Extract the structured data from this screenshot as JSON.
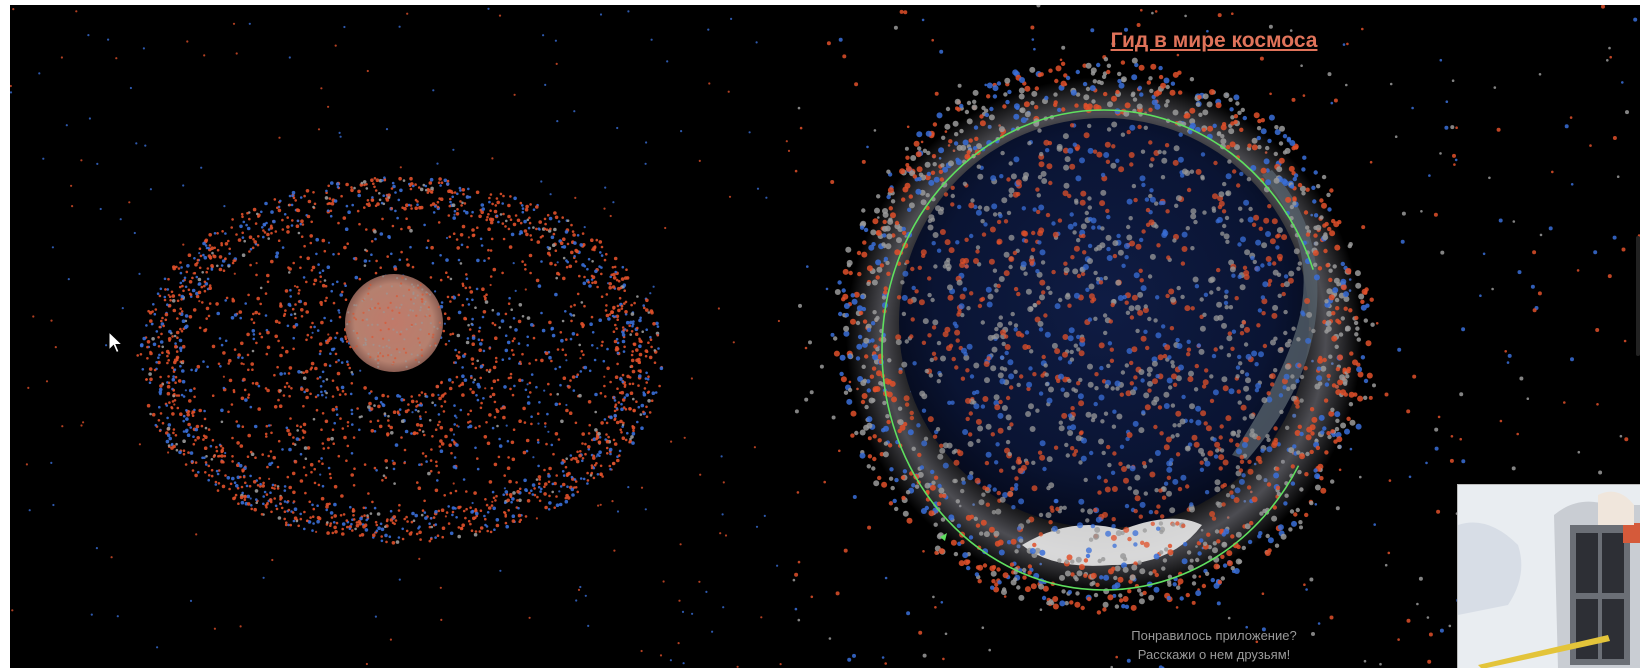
{
  "header": {
    "title_link": "Гид в мире космоса"
  },
  "promo": {
    "line1": "Понравилось приложение?",
    "line2": "Расскажи о нем друзьям!"
  },
  "colors": {
    "background": "#000000",
    "debris_red": "#e0502a",
    "debris_blue": "#3a6fd8",
    "debris_grey": "#9a9a9a",
    "orbit_line": "#5fe05f",
    "title_link": "#e0735a"
  },
  "icons": {
    "cursor": "mouse-pointer-icon"
  }
}
